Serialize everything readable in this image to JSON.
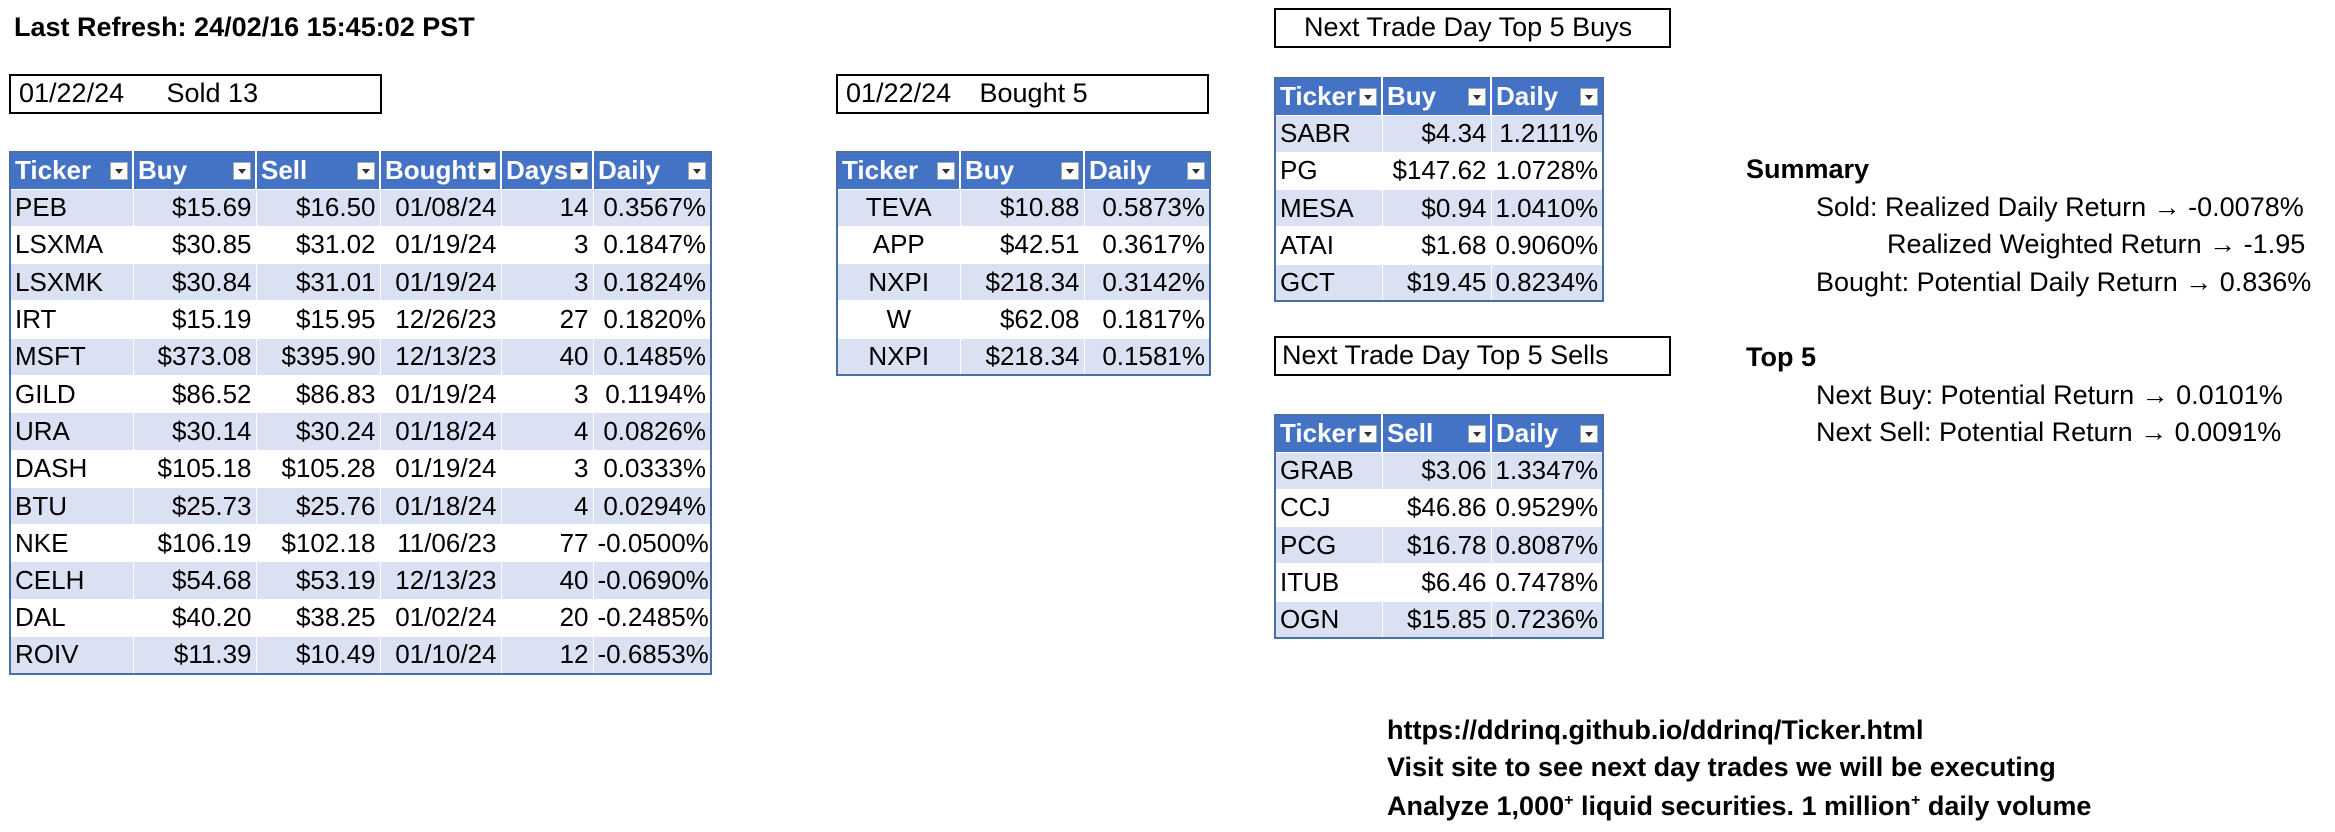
{
  "last_refresh": "Last Refresh: 24/02/16 15:45:02 PST",
  "sold_header": {
    "date": "01/22/24",
    "label": "Sold 13"
  },
  "bought_header": {
    "date": "01/22/24",
    "label": "Bought 5"
  },
  "buys_title": "Next Trade Day Top 5 Buys",
  "sells_title": "Next Trade Day Top 5 Sells",
  "sold_table": {
    "columns": [
      "Ticker",
      "Buy",
      "Sell",
      "Bought",
      "Days",
      "Daily"
    ],
    "rows": [
      [
        "PEB",
        "$15.69",
        "$16.50",
        "01/08/24",
        "14",
        "0.3567%"
      ],
      [
        "LSXMA",
        "$30.85",
        "$31.02",
        "01/19/24",
        "3",
        "0.1847%"
      ],
      [
        "LSXMK",
        "$30.84",
        "$31.01",
        "01/19/24",
        "3",
        "0.1824%"
      ],
      [
        "IRT",
        "$15.19",
        "$15.95",
        "12/26/23",
        "27",
        "0.1820%"
      ],
      [
        "MSFT",
        "$373.08",
        "$395.90",
        "12/13/23",
        "40",
        "0.1485%"
      ],
      [
        "GILD",
        "$86.52",
        "$86.83",
        "01/19/24",
        "3",
        "0.1194%"
      ],
      [
        "URA",
        "$30.14",
        "$30.24",
        "01/18/24",
        "4",
        "0.0826%"
      ],
      [
        "DASH",
        "$105.18",
        "$105.28",
        "01/19/24",
        "3",
        "0.0333%"
      ],
      [
        "BTU",
        "$25.73",
        "$25.76",
        "01/18/24",
        "4",
        "0.0294%"
      ],
      [
        "NKE",
        "$106.19",
        "$102.18",
        "11/06/23",
        "77",
        "-0.0500%"
      ],
      [
        "CELH",
        "$54.68",
        "$53.19",
        "12/13/23",
        "40",
        "-0.0690%"
      ],
      [
        "DAL",
        "$40.20",
        "$38.25",
        "01/02/24",
        "20",
        "-0.2485%"
      ],
      [
        "ROIV",
        "$11.39",
        "$10.49",
        "01/10/24",
        "12",
        "-0.6853%"
      ]
    ]
  },
  "bought_table": {
    "columns": [
      "Ticker",
      "Buy",
      "Daily"
    ],
    "rows": [
      [
        "TEVA",
        "$10.88",
        "0.5873%"
      ],
      [
        "APP",
        "$42.51",
        "0.3617%"
      ],
      [
        "NXPI",
        "$218.34",
        "0.3142%"
      ],
      [
        "W",
        "$62.08",
        "0.1817%"
      ],
      [
        "NXPI",
        "$218.34",
        "0.1581%"
      ]
    ]
  },
  "buys_table": {
    "columns": [
      "Ticker",
      "Buy",
      "Daily"
    ],
    "rows": [
      [
        "SABR",
        "$4.34",
        "1.2111%"
      ],
      [
        "PG",
        "$147.62",
        "1.0728%"
      ],
      [
        "MESA",
        "$0.94",
        "1.0410%"
      ],
      [
        "ATAI",
        "$1.68",
        "0.9060%"
      ],
      [
        "GCT",
        "$19.45",
        "0.8234%"
      ]
    ]
  },
  "sells_table": {
    "columns": [
      "Ticker",
      "Sell",
      "Daily"
    ],
    "rows": [
      [
        "GRAB",
        "$3.06",
        "1.3347%"
      ],
      [
        "CCJ",
        "$46.86",
        "0.9529%"
      ],
      [
        "PCG",
        "$16.78",
        "0.8087%"
      ],
      [
        "ITUB",
        "$6.46",
        "0.7478%"
      ],
      [
        "OGN",
        "$15.85",
        "0.7236%"
      ]
    ]
  },
  "summary": {
    "title": "Summary",
    "sold": "Sold: Realized Daily Return → -0.0078%",
    "weighted": "Realized Weighted Return → -1.95",
    "bought": "Bought: Potential Daily Return → 0.836%"
  },
  "top5": {
    "title": "Top 5",
    "next_buy": "Next Buy: Potential Return → 0.0101%",
    "next_sell": "Next Sell: Potential Return → 0.0091%"
  },
  "footer": {
    "url": "https://ddrinq.github.io/ddrinq/Ticker.html",
    "visit": "Visit site to see next day trades we will be executing",
    "analyze_a": "Analyze 1,000",
    "analyze_sup1": "+",
    "analyze_b": " liquid securities.  1 million",
    "analyze_sup2": "+",
    "analyze_c": " daily volume"
  }
}
